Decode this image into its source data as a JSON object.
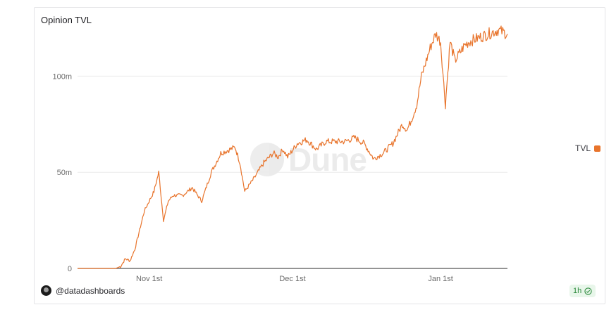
{
  "header": {
    "title": "Opinion TVL"
  },
  "footer": {
    "user": "@datadashboards",
    "refresh": "1h"
  },
  "watermark": {
    "text": "Dune"
  },
  "colors": {
    "series": "#e8742c",
    "grid": "#ebebeb",
    "axis": "#6b6b6b"
  },
  "chart_data": {
    "type": "line",
    "title": "Opinion TVL",
    "xlabel": "",
    "ylabel": "",
    "x_domain": [
      "2025-10-17",
      "2026-01-15"
    ],
    "ylim": [
      0,
      125
    ],
    "y_ticks": [
      0,
      50,
      100
    ],
    "y_tick_labels": [
      "0",
      "50m",
      "100m"
    ],
    "x_ticks": [
      "2025-11-01",
      "2025-12-01",
      "2026-01-01"
    ],
    "x_tick_labels": [
      "Nov 1st",
      "Dec 1st",
      "Jan 1st"
    ],
    "grid": true,
    "legend": "right",
    "series": [
      {
        "name": "TVL",
        "x": [
          "2025-10-17",
          "2025-10-20",
          "2025-10-23",
          "2025-10-25",
          "2025-10-26",
          "2025-10-27",
          "2025-10-28",
          "2025-10-29",
          "2025-10-30",
          "2025-10-31",
          "2025-11-01",
          "2025-11-02",
          "2025-11-03",
          "2025-11-04",
          "2025-11-05",
          "2025-11-06",
          "2025-11-08",
          "2025-11-10",
          "2025-11-12",
          "2025-11-14",
          "2025-11-16",
          "2025-11-18",
          "2025-11-19",
          "2025-11-20",
          "2025-11-21",
          "2025-11-23",
          "2025-11-25",
          "2025-11-27",
          "2025-11-28",
          "2025-11-29",
          "2025-11-30",
          "2025-12-02",
          "2025-12-04",
          "2025-12-06",
          "2025-12-08",
          "2025-12-10",
          "2025-12-12",
          "2025-12-14",
          "2025-12-16",
          "2025-12-18",
          "2025-12-20",
          "2025-12-22",
          "2025-12-24",
          "2025-12-25",
          "2025-12-26",
          "2025-12-27",
          "2025-12-28",
          "2025-12-29",
          "2025-12-30",
          "2025-12-31",
          "2026-01-01",
          "2026-01-02",
          "2026-01-03",
          "2026-01-04",
          "2026-01-05",
          "2026-01-06",
          "2026-01-07",
          "2026-01-09",
          "2026-01-11",
          "2026-01-13",
          "2026-01-15"
        ],
        "values": [
          0,
          0,
          0,
          0,
          1,
          5,
          4,
          10,
          20,
          30,
          35,
          40,
          50,
          25,
          35,
          38,
          38,
          42,
          35,
          50,
          60,
          62,
          63,
          55,
          40,
          47,
          55,
          60,
          58,
          62,
          58,
          65,
          67,
          62,
          66,
          66,
          66,
          68,
          65,
          57,
          60,
          65,
          75,
          72,
          78,
          85,
          100,
          108,
          116,
          122,
          118,
          85,
          118,
          108,
          112,
          116,
          118,
          120,
          122,
          124,
          122
        ]
      }
    ]
  }
}
